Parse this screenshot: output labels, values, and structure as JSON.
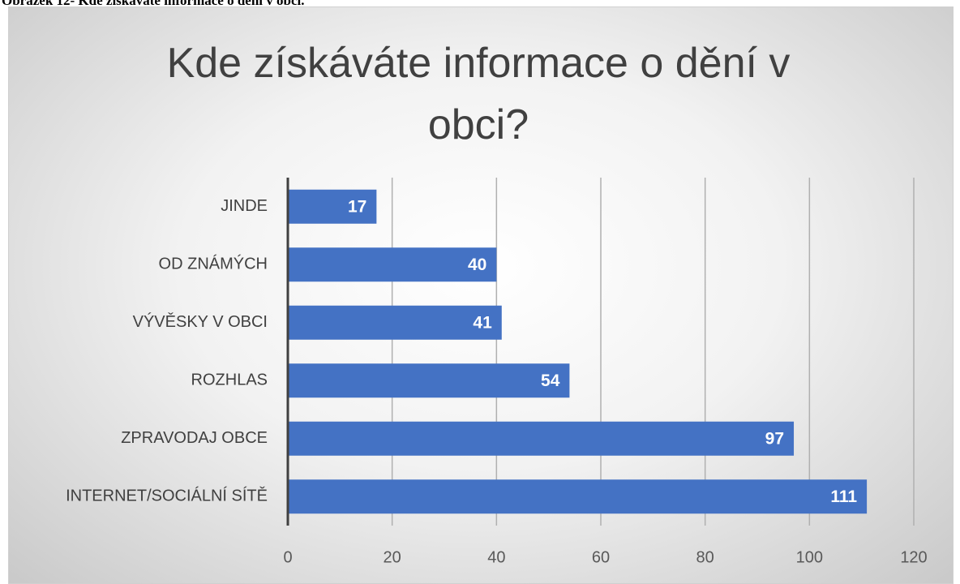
{
  "caption": "Obrázek 12- Kde získáváte informace o dění v obci.",
  "chart_data": {
    "type": "barh",
    "title": "Kde získáváte informace o dění v obci?",
    "categories": [
      "JINDE",
      "OD ZNÁMÝCH",
      "VÝVĚSKY V OBCI",
      "ROZHLAS",
      "ZPRAVODAJ OBCE",
      "INTERNET/SOCIÁLNÍ SÍTĚ"
    ],
    "values": [
      17,
      40,
      41,
      54,
      97,
      111
    ],
    "color": "#4472c4",
    "xlim": [
      0,
      120
    ],
    "xticks": [
      0,
      20,
      40,
      60,
      80,
      100,
      120
    ],
    "grid": true
  }
}
